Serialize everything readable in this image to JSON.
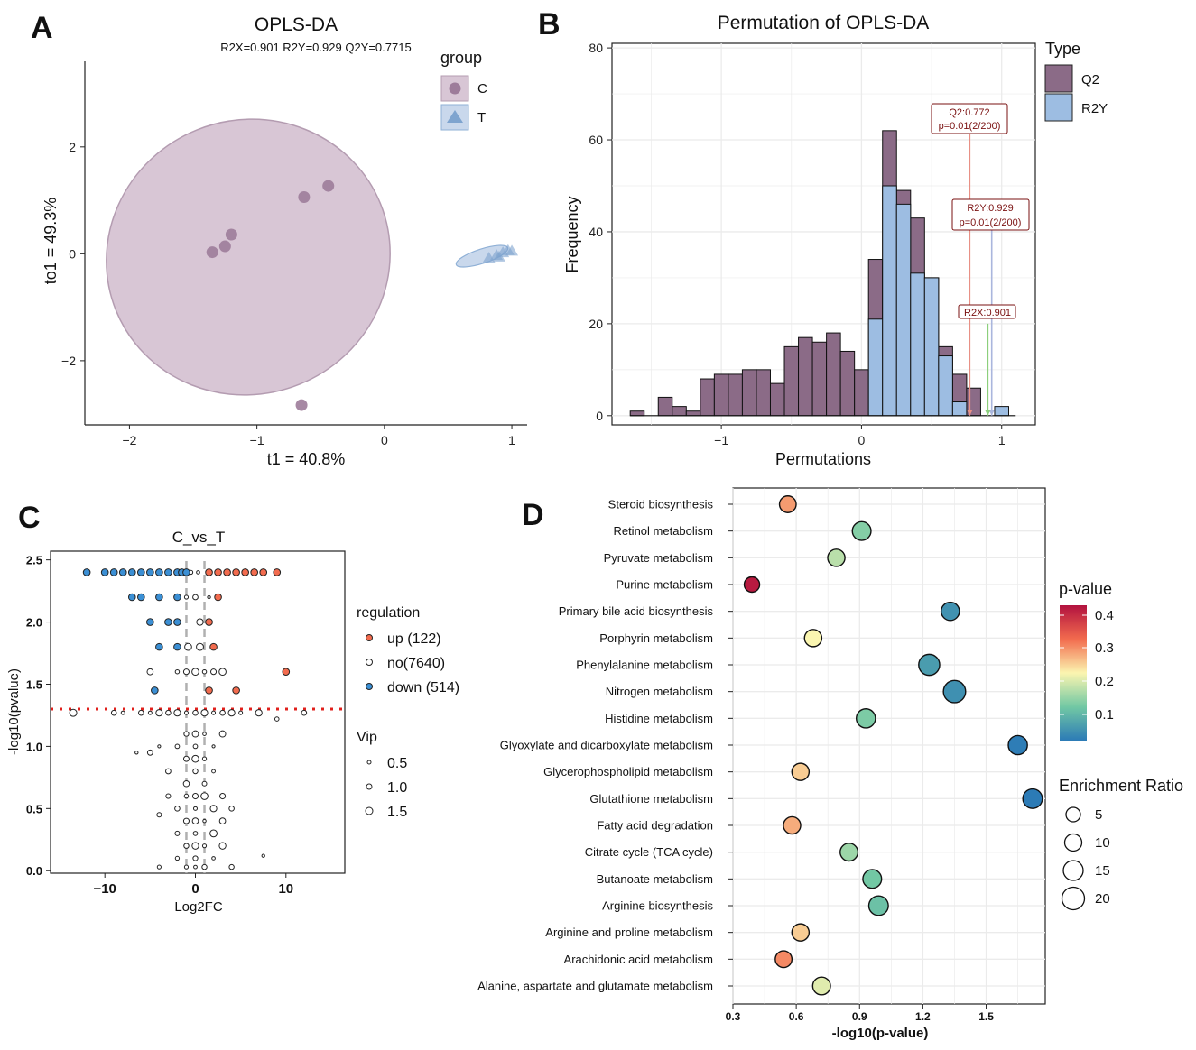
{
  "panels": {
    "A": "A",
    "B": "B",
    "C": "C",
    "D": "D"
  },
  "chart_data": [
    {
      "panel": "A",
      "type": "scatter",
      "title": "OPLS-DA",
      "subtitle": "R2X=0.901 R2Y=0.929 Q2Y=0.7715",
      "xlabel": "t1 = 40.8%",
      "ylabel": "to1 = 49.3%",
      "xlim": [
        -2.35,
        1.12
      ],
      "ylim": [
        -3.2,
        3.6
      ],
      "xticks": [
        -2,
        -1,
        0,
        1
      ],
      "yticks": [
        -2,
        0,
        2
      ],
      "legend_title": "group",
      "series": [
        {
          "name": "C",
          "color": "#9d7c9a",
          "points": [
            [
              -1.35,
              0.03
            ],
            [
              -1.25,
              0.14
            ],
            [
              -1.2,
              0.36
            ],
            [
              -0.63,
              1.06
            ],
            [
              -0.44,
              1.27
            ],
            [
              -0.65,
              -2.83
            ]
          ]
        },
        {
          "name": "T",
          "color": "#7ea4cf",
          "points": [
            [
              0.82,
              -0.08
            ],
            [
              0.88,
              -0.03
            ],
            [
              0.93,
              0.02
            ],
            [
              0.97,
              0.06
            ],
            [
              1.0,
              0.05
            ],
            [
              0.9,
              -0.06
            ]
          ]
        }
      ]
    },
    {
      "panel": "B",
      "type": "bar",
      "title": "Permutation of OPLS-DA",
      "xlabel": "Permutations",
      "ylabel": "Frequency",
      "xlim": [
        -1.78,
        1.24
      ],
      "ylim": [
        -2,
        81
      ],
      "xticks": [
        -1,
        0,
        1
      ],
      "yticks": [
        0,
        20,
        40,
        60,
        80
      ],
      "legend_title": "Type",
      "bin_width": 0.1,
      "q2_bins": {
        "color": "#8b6b87",
        "centers": [
          -1.6,
          -1.5,
          -1.4,
          -1.3,
          -1.2,
          -1.1,
          -1.0,
          -0.9,
          -0.8,
          -0.7,
          -0.6,
          -0.5,
          -0.4,
          -0.3,
          -0.2,
          -0.1,
          0.0,
          0.1,
          0.2,
          0.3,
          0.4,
          0.5,
          0.6,
          0.7,
          0.8
        ],
        "values": [
          1,
          0,
          4,
          2,
          1,
          8,
          9,
          9,
          10,
          10,
          7,
          15,
          17,
          16,
          18,
          14,
          10,
          34,
          62,
          49,
          43,
          30,
          15,
          9,
          6
        ]
      },
      "r2y_bins": {
        "color": "#9dbde2",
        "centers": [
          0.1,
          0.2,
          0.3,
          0.4,
          0.5,
          0.6,
          0.7,
          0.8,
          0.9,
          1.0
        ],
        "values": [
          21,
          50,
          46,
          31,
          30,
          13,
          3,
          0,
          0,
          2
        ]
      },
      "lines": [
        {
          "label1": "Q2:0.772",
          "label2": "p=0.01(2/200)",
          "x": 0.772,
          "color": "#e89085"
        },
        {
          "label1": "R2Y:0.929",
          "label2": "p=0.01(2/200)",
          "x": 0.929,
          "color": "#aab6dd"
        },
        {
          "label1": "R2X:0.901",
          "label2": "",
          "x": 0.901,
          "color": "#8ccf7c"
        }
      ],
      "legend": [
        {
          "name": "Q2",
          "color": "#8b6b87"
        },
        {
          "name": "R2Y",
          "color": "#9dbde2"
        }
      ]
    },
    {
      "panel": "C",
      "type": "scatter",
      "title": "C_vs_T",
      "xlabel": "Log2FC",
      "ylabel": "-log10(pvalue)",
      "xlim": [
        -16,
        16.5
      ],
      "ylim": [
        -0.02,
        2.57
      ],
      "xticks": [
        -10,
        0,
        10
      ],
      "yticks": [
        0.0,
        0.5,
        1.0,
        1.5,
        2.0,
        2.5
      ],
      "yticklabels": [
        "0.0",
        "0.5",
        "1.0",
        "1.5",
        "2.0",
        "2.5"
      ],
      "threshold_y": 1.3,
      "fc_lines": [
        -1,
        1
      ],
      "legend_title": "regulation",
      "legend": [
        {
          "label": "up (122)",
          "color": "#f26b4e"
        },
        {
          "label": "no(7640)",
          "color": "#ffffff"
        },
        {
          "label": "down (514)",
          "color": "#3b8fd4"
        }
      ],
      "size_legend_title": "Vip",
      "size_legend": [
        "0.5",
        "1.0",
        "1.5"
      ],
      "up": [
        [
          1.5,
          2.4
        ],
        [
          2.5,
          2.4
        ],
        [
          3.5,
          2.4
        ],
        [
          4.5,
          2.4
        ],
        [
          5.5,
          2.4
        ],
        [
          6.5,
          2.4
        ],
        [
          7.5,
          2.4
        ],
        [
          9,
          2.4
        ],
        [
          2.5,
          2.2
        ],
        [
          1.5,
          2.0
        ],
        [
          2,
          1.8
        ],
        [
          10,
          1.6
        ],
        [
          4.5,
          1.45
        ],
        [
          1.5,
          1.45
        ]
      ],
      "down": [
        [
          -12,
          2.4
        ],
        [
          -10,
          2.4
        ],
        [
          -9,
          2.4
        ],
        [
          -8,
          2.4
        ],
        [
          -7,
          2.4
        ],
        [
          -6,
          2.4
        ],
        [
          -5,
          2.4
        ],
        [
          -4,
          2.4
        ],
        [
          -3,
          2.4
        ],
        [
          -2,
          2.4
        ],
        [
          -1.5,
          2.4
        ],
        [
          -1,
          2.4
        ],
        [
          -7,
          2.2
        ],
        [
          -6,
          2.2
        ],
        [
          -4,
          2.2
        ],
        [
          -2,
          2.2
        ],
        [
          -5,
          2.0
        ],
        [
          -3,
          2.0
        ],
        [
          -2,
          2.0
        ],
        [
          -4,
          1.8
        ],
        [
          -2,
          1.8
        ],
        [
          -4.5,
          1.45
        ]
      ],
      "no": [
        [
          -0.5,
          2.4
        ],
        [
          0.3,
          2.4
        ],
        [
          -1,
          2.2
        ],
        [
          0,
          2.2
        ],
        [
          1.5,
          2.2
        ],
        [
          0.5,
          2.0
        ],
        [
          -0.8,
          1.8
        ],
        [
          0.5,
          1.8
        ],
        [
          -1,
          1.6
        ],
        [
          0,
          1.6
        ],
        [
          1,
          1.6
        ],
        [
          2,
          1.6
        ],
        [
          3,
          1.6
        ],
        [
          -2,
          1.6
        ],
        [
          -5,
          1.6
        ],
        [
          -13.5,
          1.27
        ],
        [
          -9,
          1.27
        ],
        [
          -8,
          1.27
        ],
        [
          -6,
          1.27
        ],
        [
          -5,
          1.27
        ],
        [
          -4,
          1.27
        ],
        [
          -3,
          1.27
        ],
        [
          -2,
          1.27
        ],
        [
          -1,
          1.27
        ],
        [
          0,
          1.27
        ],
        [
          1,
          1.27
        ],
        [
          2,
          1.27
        ],
        [
          3,
          1.27
        ],
        [
          4,
          1.27
        ],
        [
          5,
          1.27
        ],
        [
          7,
          1.27
        ],
        [
          9,
          1.22
        ],
        [
          12,
          1.27
        ],
        [
          -1,
          1.1
        ],
        [
          0,
          1.1
        ],
        [
          1,
          1.1
        ],
        [
          3,
          1.1
        ],
        [
          -4,
          1.0
        ],
        [
          -2,
          1.0
        ],
        [
          0,
          1.0
        ],
        [
          2,
          1.0
        ],
        [
          -6.5,
          0.95
        ],
        [
          -5,
          0.95
        ],
        [
          -1,
          0.9
        ],
        [
          0,
          0.9
        ],
        [
          1,
          0.9
        ],
        [
          -3,
          0.8
        ],
        [
          0,
          0.8
        ],
        [
          2,
          0.8
        ],
        [
          -1,
          0.7
        ],
        [
          1,
          0.7
        ],
        [
          -3,
          0.6
        ],
        [
          -1,
          0.6
        ],
        [
          0,
          0.6
        ],
        [
          1,
          0.6
        ],
        [
          3,
          0.6
        ],
        [
          -2,
          0.5
        ],
        [
          0,
          0.5
        ],
        [
          2,
          0.5
        ],
        [
          4,
          0.5
        ],
        [
          -4,
          0.45
        ],
        [
          -1,
          0.4
        ],
        [
          0,
          0.4
        ],
        [
          1,
          0.4
        ],
        [
          3,
          0.4
        ],
        [
          -2,
          0.3
        ],
        [
          0,
          0.3
        ],
        [
          2,
          0.3
        ],
        [
          -1,
          0.2
        ],
        [
          0,
          0.2
        ],
        [
          1,
          0.2
        ],
        [
          3,
          0.2
        ],
        [
          -2,
          0.1
        ],
        [
          0,
          0.1
        ],
        [
          2,
          0.1
        ],
        [
          7.5,
          0.12
        ],
        [
          -1,
          0.03
        ],
        [
          0,
          0.03
        ],
        [
          1,
          0.03
        ],
        [
          -4,
          0.03
        ],
        [
          4,
          0.03
        ]
      ]
    },
    {
      "panel": "D",
      "type": "scatter",
      "xlabel": "-log10(p-value)",
      "xlim": [
        0.3,
        1.78
      ],
      "xticks": [
        0.3,
        0.6,
        0.9,
        1.2,
        1.5
      ],
      "xticklabels": [
        "0.3",
        "0.6",
        "0.9",
        "1.2",
        "1.5"
      ],
      "color_legend_title": "p-value",
      "color_ticks": [
        "0.4",
        "0.3",
        "0.2",
        "0.1"
      ],
      "size_legend_title": "Enrichment Ratio",
      "size_legend": [
        "5",
        "10",
        "15",
        "20"
      ],
      "pathways": [
        {
          "name": "Steroid biosynthesis",
          "x": 0.56,
          "pv": 0.275,
          "er": 5
        },
        {
          "name": "Retinol metabolism",
          "x": 0.91,
          "pv": 0.123,
          "er": 9
        },
        {
          "name": "Pyruvate metabolism",
          "x": 0.79,
          "pv": 0.162,
          "er": 6
        },
        {
          "name": "Purine metabolism",
          "x": 0.39,
          "pv": 0.41,
          "er": 3
        },
        {
          "name": "Primary bile acid biosynthesis",
          "x": 1.33,
          "pv": 0.047,
          "er": 8
        },
        {
          "name": "Porphyrin metabolism",
          "x": 0.68,
          "pv": 0.209,
          "er": 6
        },
        {
          "name": "Phenylalanine metabolism",
          "x": 1.23,
          "pv": 0.059,
          "er": 15
        },
        {
          "name": "Nitrogen metabolism",
          "x": 1.35,
          "pv": 0.045,
          "er": 19
        },
        {
          "name": "Histidine metabolism",
          "x": 0.93,
          "pv": 0.117,
          "er": 10
        },
        {
          "name": "Glyoxylate and dicarboxylate metabolism",
          "x": 1.65,
          "pv": 0.022,
          "er": 10
        },
        {
          "name": "Glycerophospholipid metabolism",
          "x": 0.62,
          "pv": 0.24,
          "er": 6
        },
        {
          "name": "Glutathione metabolism",
          "x": 1.72,
          "pv": 0.019,
          "er": 11
        },
        {
          "name": "Fatty acid degradation",
          "x": 0.58,
          "pv": 0.263,
          "er": 6
        },
        {
          "name": "Citrate cycle (TCA cycle)",
          "x": 0.85,
          "pv": 0.141,
          "er": 7
        },
        {
          "name": "Butanoate metabolism",
          "x": 0.96,
          "pv": 0.11,
          "er": 9
        },
        {
          "name": "Arginine biosynthesis",
          "x": 0.99,
          "pv": 0.102,
          "er": 11
        },
        {
          "name": "Arginine and proline metabolism",
          "x": 0.62,
          "pv": 0.24,
          "er": 6
        },
        {
          "name": "Arachidonic acid metabolism",
          "x": 0.54,
          "pv": 0.288,
          "er": 5
        },
        {
          "name": "Alanine, aspartate and glutamate metabolism",
          "x": 0.72,
          "pv": 0.19,
          "er": 7
        }
      ]
    }
  ]
}
